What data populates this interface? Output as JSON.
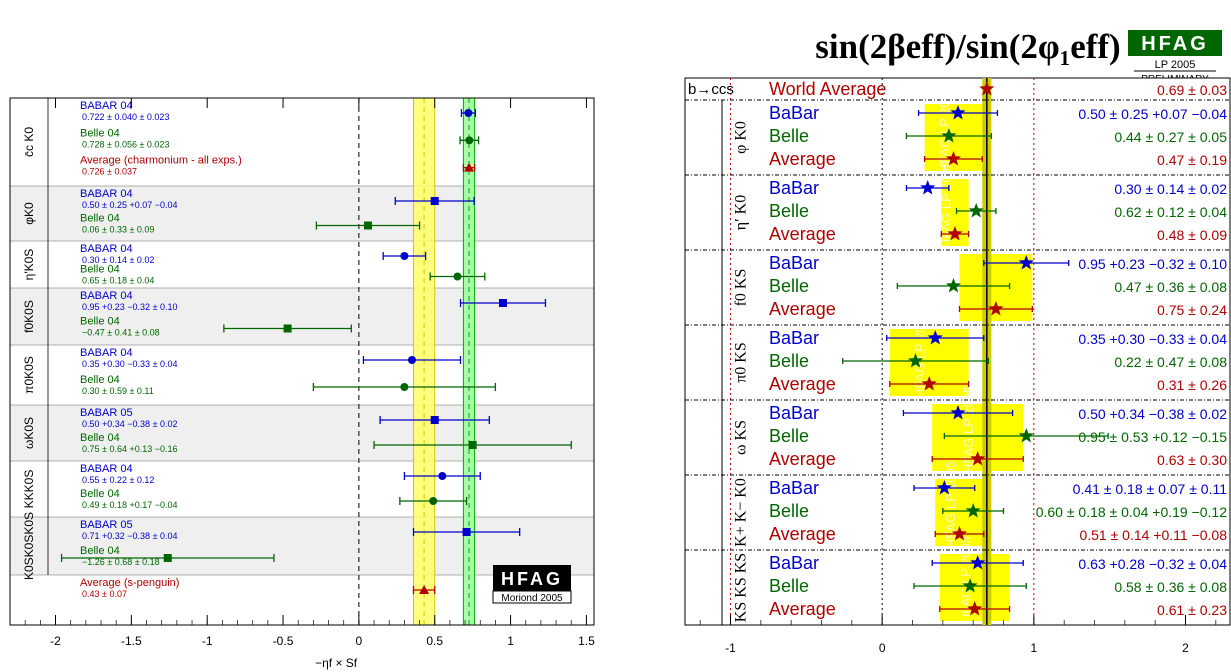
{
  "colors": {
    "babar": "#0000cc",
    "belle": "#006600",
    "avg": "#b00000",
    "band_fill": "#ffff66",
    "band_line": "#cccc00",
    "band2_fill": "#99ff99",
    "band2_line": "#00aa00"
  },
  "chart_data": [
    {
      "type": "scatter",
      "orientation": "horizontal-errorbars",
      "xlabel": "−ηf × Sf",
      "xticks": [
        "-2",
        "-1.5",
        "-1",
        "-0.5",
        "0",
        "0.5",
        "1",
        "1.5"
      ],
      "xlim": [
        -2.3,
        1.55
      ],
      "bands": [
        {
          "center": 0.43,
          "half_width": 0.07
        },
        {
          "center": 0.726,
          "half_width": 0.037
        }
      ],
      "badge": {
        "logo": "HFAG",
        "sub": "Moriond 2005"
      },
      "groups": [
        {
          "label": "c̄c K0",
          "rows": [
            {
              "name": "BABAR 04",
              "text": "0.722 ± 0.040 ± 0.023",
              "value": 0.722,
              "err": 0.046,
              "color": "babar",
              "marker": "circle"
            },
            {
              "name": "Belle 04",
              "text": "0.728 ± 0.056 ± 0.023",
              "value": 0.728,
              "err": 0.061,
              "color": "belle",
              "marker": "circle"
            },
            {
              "name": "Average (charmonium - all exps.)",
              "text": "0.726 ± 0.037",
              "value": 0.726,
              "err": 0.037,
              "color": "avg",
              "marker": "triangle"
            }
          ]
        },
        {
          "label": "φK0",
          "rows": [
            {
              "name": "BABAR 04",
              "text": "0.50 ± 0.25 +0.07 −0.04",
              "value": 0.5,
              "err": 0.26,
              "color": "babar",
              "marker": "square"
            },
            {
              "name": "Belle 04",
              "text": "0.06 ± 0.33 ± 0.09",
              "value": 0.06,
              "err": 0.34,
              "color": "belle",
              "marker": "square"
            }
          ]
        },
        {
          "label": "η′K0S",
          "rows": [
            {
              "name": "BABAR 04",
              "text": "0.30 ± 0.14 ± 0.02",
              "value": 0.3,
              "err": 0.14,
              "color": "babar",
              "marker": "circle"
            },
            {
              "name": "Belle 04",
              "text": "0.65 ± 0.18 ± 0.04",
              "value": 0.65,
              "err": 0.18,
              "color": "belle",
              "marker": "circle"
            }
          ]
        },
        {
          "label": "f0K0S",
          "rows": [
            {
              "name": "BABAR 04",
              "text": "0.95 +0.23 −0.32 ± 0.10",
              "value": 0.95,
              "err": 0.28,
              "color": "babar",
              "marker": "square"
            },
            {
              "name": "Belle 04",
              "text": "−0.47 ± 0.41 ± 0.08",
              "value": -0.47,
              "err": 0.42,
              "color": "belle",
              "marker": "square"
            }
          ]
        },
        {
          "label": "π0K0S",
          "rows": [
            {
              "name": "BABAR 04",
              "text": "0.35 +0.30 −0.33 ± 0.04",
              "value": 0.35,
              "err": 0.32,
              "color": "babar",
              "marker": "circle"
            },
            {
              "name": "Belle 04",
              "text": "0.30 ± 0.59 ± 0.11",
              "value": 0.3,
              "err": 0.6,
              "color": "belle",
              "marker": "circle"
            }
          ]
        },
        {
          "label": "ωK0S",
          "rows": [
            {
              "name": "BABAR 05",
              "text": "0.50 +0.34 −0.38 ± 0.02",
              "value": 0.5,
              "err": 0.36,
              "color": "babar",
              "marker": "square"
            },
            {
              "name": "Belle 04",
              "text": "0.75 ± 0.64 +0.13 −0.16",
              "value": 0.75,
              "err": 0.65,
              "color": "belle",
              "marker": "square"
            }
          ]
        },
        {
          "label": "KKK0S",
          "rows": [
            {
              "name": "BABAR 04",
              "text": "0.55 ± 0.22 ± 0.12",
              "value": 0.55,
              "err": 0.25,
              "color": "babar",
              "marker": "circle"
            },
            {
              "name": "Belle 04",
              "text": "0.49 ± 0.18 +0.17 −0.04",
              "value": 0.49,
              "err": 0.22,
              "color": "belle",
              "marker": "circle"
            }
          ]
        },
        {
          "label": "K0SK0SK0S",
          "rows": [
            {
              "name": "BABAR 05",
              "text": "0.71 +0.32 −0.38 ± 0.04",
              "value": 0.71,
              "err": 0.35,
              "color": "babar",
              "marker": "square"
            },
            {
              "name": "Belle 04",
              "text": "−1.26 ± 0.68 ± 0.18",
              "value": -1.26,
              "err": 0.7,
              "color": "belle",
              "marker": "square"
            }
          ]
        },
        {
          "label": "",
          "rows": [
            {
              "name": "Average (s-penguin)",
              "text": "0.43 ± 0.07",
              "value": 0.43,
              "err": 0.07,
              "color": "avg",
              "marker": "triangle"
            }
          ]
        }
      ]
    },
    {
      "type": "scatter",
      "orientation": "horizontal-errorbars",
      "title": "sin(2βeff)/sin(2φ₁eff)",
      "badge": {
        "logo": "HFAG",
        "sub1": "LP 2005",
        "sub2": "PRELIMINARY"
      },
      "xticks": [
        "-1",
        "0",
        "1",
        "2"
      ],
      "xlim": [
        -1.3,
        2.3
      ],
      "world_average": {
        "group_label": "b→ccs",
        "name": "World Average",
        "text": "0.69 ± 0.03",
        "value": 0.69,
        "err": 0.03
      },
      "watermark": [
        "HFAG",
        "LP 2005"
      ],
      "groups": [
        {
          "label": "φ K0",
          "rows": [
            {
              "name": "BaBar",
              "text": "0.50 ± 0.25 +0.07 −0.04",
              "value": 0.5,
              "err": 0.26,
              "color": "babar"
            },
            {
              "name": "Belle",
              "text": "0.44 ± 0.27 ± 0.05",
              "value": 0.44,
              "err": 0.28,
              "color": "belle"
            },
            {
              "name": "Average",
              "text": "0.47 ± 0.19",
              "value": 0.47,
              "err": 0.19,
              "color": "avg"
            }
          ]
        },
        {
          "label": "η′ K0",
          "rows": [
            {
              "name": "BaBar",
              "text": "0.30 ± 0.14 ± 0.02",
              "value": 0.3,
              "err": 0.14,
              "color": "babar"
            },
            {
              "name": "Belle",
              "text": "0.62 ± 0.12 ± 0.04",
              "value": 0.62,
              "err": 0.13,
              "color": "belle"
            },
            {
              "name": "Average",
              "text": "0.48 ± 0.09",
              "value": 0.48,
              "err": 0.09,
              "color": "avg"
            }
          ]
        },
        {
          "label": "f0 KS",
          "rows": [
            {
              "name": "BaBar",
              "text": "0.95 +0.23 −0.32 ± 0.10",
              "value": 0.95,
              "err": 0.28,
              "color": "babar"
            },
            {
              "name": "Belle",
              "text": "0.47 ± 0.36 ± 0.08",
              "value": 0.47,
              "err": 0.37,
              "color": "belle"
            },
            {
              "name": "Average",
              "text": "0.75 ± 0.24",
              "value": 0.75,
              "err": 0.24,
              "color": "avg"
            }
          ]
        },
        {
          "label": "π0 KS",
          "rows": [
            {
              "name": "BaBar",
              "text": "0.35 +0.30 −0.33 ± 0.04",
              "value": 0.35,
              "err": 0.32,
              "color": "babar"
            },
            {
              "name": "Belle",
              "text": "0.22 ± 0.47 ± 0.08",
              "value": 0.22,
              "err": 0.48,
              "color": "belle"
            },
            {
              "name": "Average",
              "text": "0.31 ± 0.26",
              "value": 0.31,
              "err": 0.26,
              "color": "avg"
            }
          ]
        },
        {
          "label": "ω KS",
          "rows": [
            {
              "name": "BaBar",
              "text": "0.50 +0.34 −0.38 ± 0.02",
              "value": 0.5,
              "err": 0.36,
              "color": "babar"
            },
            {
              "name": "Belle",
              "text": "0.95 ± 0.53 +0.12 −0.15",
              "value": 0.95,
              "err": 0.54,
              "color": "belle"
            },
            {
              "name": "Average",
              "text": "0.63 ± 0.30",
              "value": 0.63,
              "err": 0.3,
              "color": "avg"
            }
          ]
        },
        {
          "label": "K+ K− K0",
          "rows": [
            {
              "name": "BaBar",
              "text": "0.41 ± 0.18 ± 0.07 ± 0.11",
              "value": 0.41,
              "err": 0.2,
              "color": "babar"
            },
            {
              "name": "Belle",
              "text": "0.60 ± 0.18 ± 0.04 +0.19 −0.12",
              "value": 0.6,
              "err": 0.2,
              "color": "belle"
            },
            {
              "name": "Average",
              "text": "0.51 ± 0.14 +0.11 −0.08",
              "value": 0.51,
              "err": 0.16,
              "color": "avg"
            }
          ]
        },
        {
          "label": "KS KS KS",
          "rows": [
            {
              "name": "BaBar",
              "text": "0.63 +0.28 −0.32 ± 0.04",
              "value": 0.63,
              "err": 0.3,
              "color": "babar"
            },
            {
              "name": "Belle",
              "text": "0.58 ± 0.36 ± 0.08",
              "value": 0.58,
              "err": 0.37,
              "color": "belle"
            },
            {
              "name": "Average",
              "text": "0.61 ± 0.23",
              "value": 0.61,
              "err": 0.23,
              "color": "avg"
            }
          ]
        }
      ]
    }
  ]
}
